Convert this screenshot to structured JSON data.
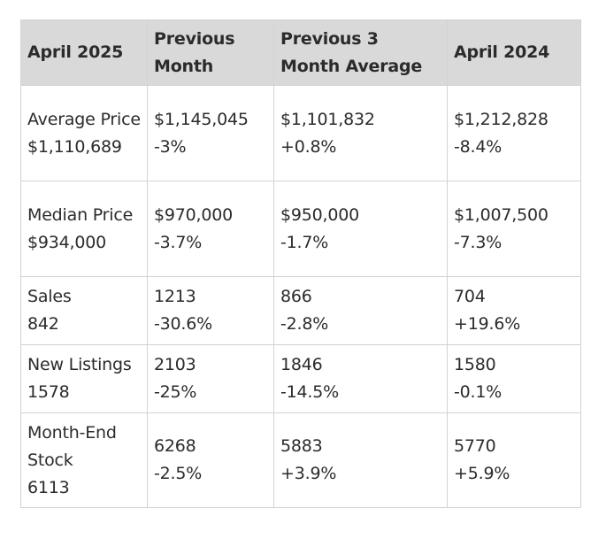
{
  "table": {
    "headers": [
      "April 2025",
      "Previous Month",
      "Previous 3 Month Average",
      "April 2024"
    ],
    "rows": [
      {
        "label": "Average Price",
        "value": "$1,110,689",
        "prev_month": {
          "value": "$1,145,045",
          "change": "-3%"
        },
        "prev_3mo": {
          "value": "$1,101,832",
          "change": "+0.8%"
        },
        "year_ago": {
          "value": "$1,212,828",
          "change": "-8.4%"
        }
      },
      {
        "label": "Median Price",
        "value": "$934,000",
        "prev_month": {
          "value": "$970,000",
          "change": "-3.7%"
        },
        "prev_3mo": {
          "value": "$950,000",
          "change": "-1.7%"
        },
        "year_ago": {
          "value": "$1,007,500",
          "change": "-7.3%"
        }
      },
      {
        "label": "Sales",
        "value": "842",
        "prev_month": {
          "value": "1213",
          "change": "-30.6%"
        },
        "prev_3mo": {
          "value": "866",
          "change": "-2.8%"
        },
        "year_ago": {
          "value": "704",
          "change": "+19.6%"
        }
      },
      {
        "label": "New Listings",
        "value": "1578",
        "prev_month": {
          "value": "2103",
          "change": "-25%"
        },
        "prev_3mo": {
          "value": "1846",
          "change": "-14.5%"
        },
        "year_ago": {
          "value": "1580",
          "change": "-0.1%"
        }
      },
      {
        "label": "Month-End Stock",
        "value": "6113",
        "prev_month": {
          "value": "6268",
          "change": "-2.5%"
        },
        "prev_3mo": {
          "value": "5883",
          "change": "+3.9%"
        },
        "year_ago": {
          "value": "5770",
          "change": "+5.9%"
        }
      }
    ]
  }
}
